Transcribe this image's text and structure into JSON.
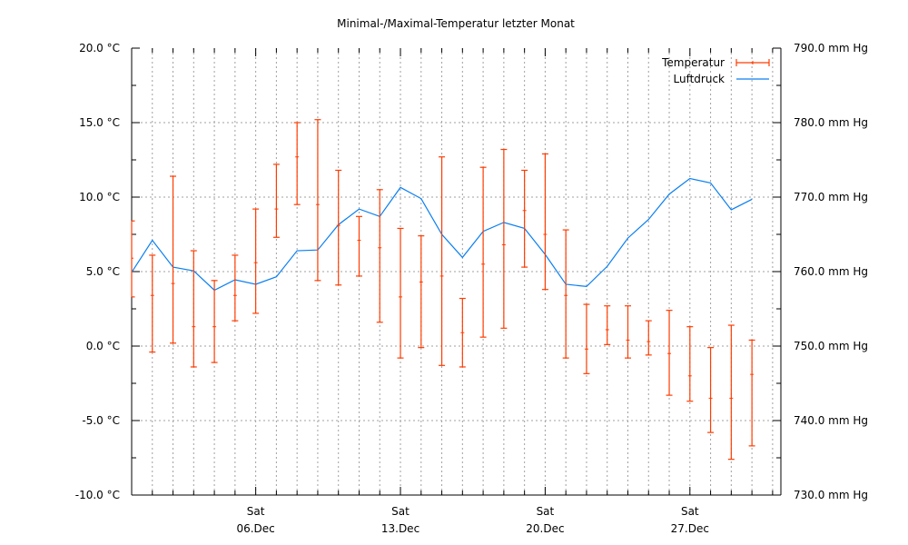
{
  "chart_data": {
    "type": "line",
    "title": "Minimal-/Maximal-Temperatur letzter Monat",
    "xlabel": "",
    "ylabel": "",
    "y2label": "",
    "xlim": [
      0,
      31.4
    ],
    "ylim": [
      -10,
      20
    ],
    "y2lim": [
      730,
      790
    ],
    "grid": true,
    "legend_position": "top-right",
    "colors": {
      "temperature": "#ff3c00",
      "pressure": "#0a7ff0",
      "grid": "#a0a0a0"
    },
    "y_ticks": [
      {
        "value": -10,
        "label": "-10.0 °C"
      },
      {
        "value": -5,
        "label": "-5.0 °C"
      },
      {
        "value": 0,
        "label": "0.0 °C"
      },
      {
        "value": 5,
        "label": "5.0 °C"
      },
      {
        "value": 10,
        "label": "10.0 °C"
      },
      {
        "value": 15,
        "label": "15.0 °C"
      },
      {
        "value": 20,
        "label": "20.0 °C"
      }
    ],
    "y2_ticks": [
      {
        "value": 730,
        "label": "730.0 mm Hg"
      },
      {
        "value": 740,
        "label": "740.0 mm Hg"
      },
      {
        "value": 750,
        "label": "750.0 mm Hg"
      },
      {
        "value": 760,
        "label": "760.0 mm Hg"
      },
      {
        "value": 770,
        "label": "770.0 mm Hg"
      },
      {
        "value": 780,
        "label": "780.0 mm Hg"
      },
      {
        "value": 790,
        "label": "790.0 mm Hg"
      }
    ],
    "x_ticks": [
      {
        "value": 6,
        "day": "Sat",
        "date": "06.Dec"
      },
      {
        "value": 13,
        "day": "Sat",
        "date": "13.Dec"
      },
      {
        "value": 20,
        "day": "Sat",
        "date": "20.Dec"
      },
      {
        "value": 27,
        "day": "Sat",
        "date": "27.Dec"
      }
    ],
    "x": [
      0,
      1,
      2,
      3,
      4,
      5,
      6,
      7,
      8,
      9,
      10,
      11,
      12,
      13,
      14,
      15,
      16,
      17,
      18,
      19,
      20,
      21,
      22,
      23,
      24,
      25,
      26,
      27,
      28,
      29,
      30
    ],
    "series": [
      {
        "name": "Temperatur",
        "kind": "errorbar",
        "axis": "left",
        "mean": [
          5.9,
          3.4,
          4.2,
          1.3,
          1.3,
          3.4,
          5.6,
          9.2,
          12.7,
          9.5,
          8.1,
          7.1,
          6.6,
          3.3,
          4.3,
          4.7,
          0.9,
          5.5,
          6.8,
          9.1,
          7.5,
          3.4,
          -0.2,
          1.1,
          0.4,
          0.3,
          -0.5,
          -2.0,
          -3.5,
          -3.5,
          -1.9
        ],
        "min": [
          3.3,
          -0.4,
          0.2,
          -1.4,
          -1.1,
          1.7,
          2.2,
          7.3,
          9.5,
          4.4,
          4.1,
          4.7,
          1.6,
          -0.8,
          -0.1,
          -1.3,
          -1.4,
          0.6,
          1.2,
          5.3,
          3.8,
          -0.8,
          -1.85,
          0.1,
          -0.8,
          -0.6,
          -3.3,
          -3.7,
          -5.8,
          -7.6,
          -6.7
        ],
        "max": [
          8.4,
          6.1,
          11.4,
          6.4,
          4.4,
          6.1,
          9.2,
          12.2,
          15.0,
          15.2,
          11.8,
          8.7,
          10.5,
          7.9,
          7.4,
          12.7,
          3.2,
          12.0,
          13.2,
          11.8,
          12.9,
          7.8,
          2.8,
          2.7,
          2.7,
          1.7,
          2.4,
          1.3,
          -0.1,
          1.4,
          0.4
        ]
      },
      {
        "name": "Luftdruck",
        "kind": "line",
        "axis": "right",
        "values": [
          759.9,
          764.2,
          760.6,
          760.1,
          757.5,
          758.9,
          758.3,
          759.3,
          762.8,
          762.9,
          766.3,
          768.4,
          767.4,
          771.3,
          769.8,
          765.0,
          761.9,
          765.4,
          766.6,
          765.8,
          762.3,
          758.3,
          758.0,
          760.7,
          764.5,
          767.0,
          770.4,
          772.5,
          771.9,
          768.3,
          769.7
        ]
      }
    ]
  }
}
